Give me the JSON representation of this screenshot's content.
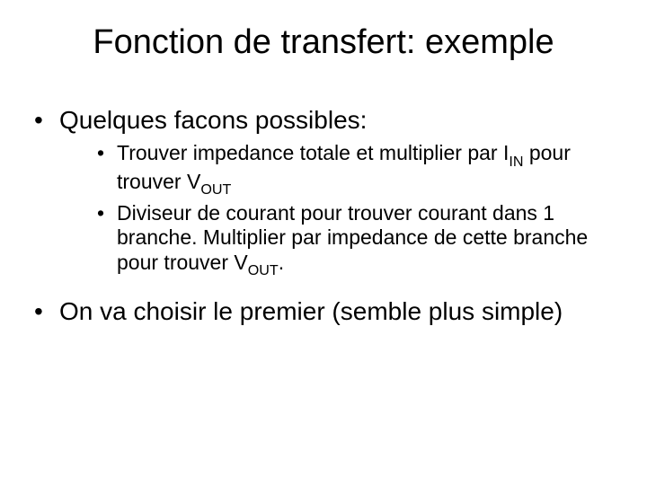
{
  "title": "Fonction de transfert: exemple",
  "bullets": {
    "l1a": "Quelques facons possibles:",
    "l2a_pre": "Trouver impedance totale et multiplier par I",
    "l2a_sub1": "IN",
    "l2a_mid": " pour trouver V",
    "l2a_sub2": "OUT",
    "l2b_pre": "Diviseur de courant pour trouver courant dans 1 branche. Multiplier par impedance de cette branche pour trouver V",
    "l2b_sub": "OUT",
    "l2b_post": ".",
    "l1b": "On va choisir le premier (semble plus simple)"
  }
}
